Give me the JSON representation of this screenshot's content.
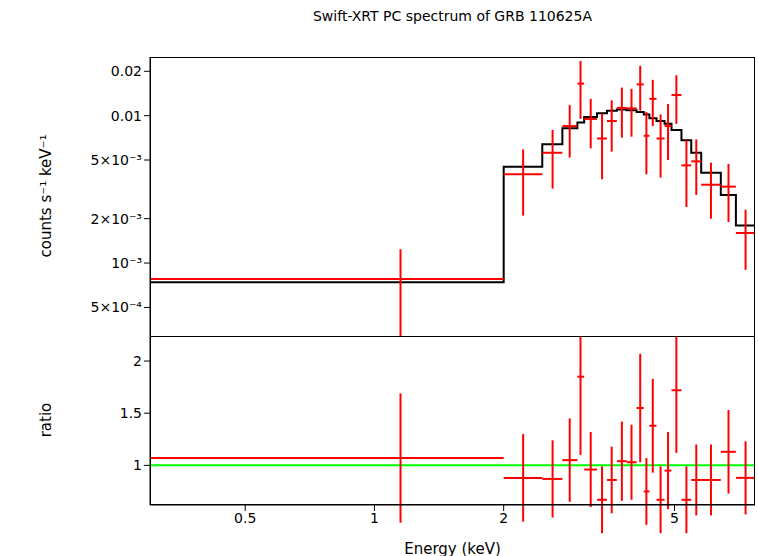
{
  "chart_data": [
    {
      "type": "scatter",
      "title": "Swift-XRT PC spectrum of GRB 110625A",
      "ylabel": "counts s⁻¹ keV⁻¹",
      "log": true,
      "tick_labels": "y",
      "xlim": [
        0.3,
        7.7
      ],
      "xticks": [
        0.5,
        1,
        2,
        5
      ],
      "ylim": [
        0.00032,
        0.025
      ],
      "yticks": [
        {
          "value": 0.0005,
          "label": "5×10⁻⁴"
        },
        {
          "value": 0.001,
          "label": "10⁻³"
        },
        {
          "value": 0.002,
          "label": "2×10⁻³"
        },
        {
          "value": 0.005,
          "label": "5×10⁻³"
        },
        0.01,
        0.02
      ],
      "series": [
        {
          "type": "scatter",
          "color": "#ff0000",
          "x": [
            1.15,
            2.22,
            2.6,
            2.85,
            3.02,
            3.19,
            3.39,
            3.57,
            3.77,
            3.97,
            4.16,
            4.3,
            4.45,
            4.64,
            4.83,
            5.05,
            5.33,
            5.62,
            6.08,
            6.68,
            7.32
          ],
          "x_low": [
            0.3,
            2.0,
            2.46,
            2.74,
            2.97,
            3.08,
            3.3,
            3.48,
            3.67,
            3.87,
            4.08,
            4.24,
            4.37,
            4.54,
            4.74,
            4.92,
            5.19,
            5.47,
            5.77,
            6.41,
            6.95
          ],
          "x_high": [
            2.0,
            2.46,
            2.74,
            2.97,
            3.08,
            3.3,
            3.48,
            3.67,
            3.87,
            4.08,
            4.24,
            4.37,
            4.54,
            4.74,
            4.92,
            5.19,
            5.47,
            5.77,
            6.41,
            6.95,
            7.7
          ],
          "values": [
            0.00078,
            0.004,
            0.0056,
            0.0085,
            0.0165,
            0.0095,
            0.007,
            0.0092,
            0.0113,
            0.0112,
            0.0163,
            0.0073,
            0.013,
            0.007,
            0.0085,
            0.0138,
            0.0046,
            0.0049,
            0.0034,
            0.0033,
            0.0016
          ],
          "yerr": [
            0.00046,
            0.0019,
            0.0024,
            0.0033,
            0.007,
            0.0035,
            0.0033,
            0.0035,
            0.0042,
            0.004,
            0.0055,
            0.0033,
            0.0045,
            0.0032,
            0.0035,
            0.005,
            0.0022,
            0.002,
            0.0014,
            0.0014,
            0.0007
          ]
        },
        {
          "type": "step",
          "color": "#000000",
          "x_low": [
            0.3,
            2.0,
            2.46,
            2.74,
            2.97,
            3.08,
            3.3,
            3.48,
            3.67,
            3.87,
            4.08,
            4.24,
            4.37,
            4.54,
            4.74,
            4.92,
            5.19,
            5.47,
            5.77,
            6.41,
            6.95
          ],
          "x_high": [
            2.0,
            2.46,
            2.74,
            2.97,
            3.08,
            3.3,
            3.48,
            3.67,
            3.87,
            4.08,
            4.24,
            4.37,
            4.54,
            4.74,
            4.92,
            5.19,
            5.47,
            5.77,
            6.41,
            6.95,
            7.7
          ],
          "values": [
            0.00074,
            0.0045,
            0.0064,
            0.0082,
            0.009,
            0.0098,
            0.0104,
            0.0108,
            0.011,
            0.0109,
            0.0106,
            0.0102,
            0.0096,
            0.0092,
            0.0088,
            0.008,
            0.0068,
            0.0056,
            0.0041,
            0.0029,
            0.0018
          ]
        }
      ]
    },
    {
      "type": "scatter",
      "xlabel": "Energy (keV)",
      "ylabel": "ratio",
      "log": "x",
      "xlim": [
        0.3,
        7.7
      ],
      "xticks": [
        0.5,
        1,
        2,
        5
      ],
      "ylim": [
        0.62,
        2.24
      ],
      "yticks": [
        1,
        1.5,
        2
      ],
      "reference_y": 1,
      "reference_color": "#00ff00",
      "series": [
        {
          "type": "scatter",
          "color": "#ff0000",
          "x": [
            1.15,
            2.22,
            2.6,
            2.85,
            3.02,
            3.19,
            3.39,
            3.57,
            3.77,
            3.97,
            4.16,
            4.3,
            4.45,
            4.64,
            4.83,
            5.05,
            5.33,
            5.62,
            6.08,
            6.68,
            7.32
          ],
          "x_low": [
            0.3,
            2.0,
            2.46,
            2.74,
            2.97,
            3.08,
            3.3,
            3.48,
            3.67,
            3.87,
            4.08,
            4.24,
            4.37,
            4.54,
            4.74,
            4.92,
            5.19,
            5.47,
            5.77,
            6.41,
            6.95
          ],
          "x_high": [
            2.0,
            2.46,
            2.74,
            2.97,
            3.08,
            3.3,
            3.48,
            3.67,
            3.87,
            4.08,
            4.24,
            4.37,
            4.54,
            4.74,
            4.92,
            5.19,
            5.47,
            5.77,
            6.41,
            6.95,
            7.7
          ],
          "values": [
            1.07,
            0.88,
            0.87,
            1.05,
            1.85,
            0.96,
            0.67,
            0.86,
            1.04,
            1.03,
            1.55,
            0.75,
            1.38,
            0.67,
            0.95,
            1.72,
            0.67,
            0.86,
            0.86,
            1.13,
            0.88
          ],
          "yerr": [
            0.62,
            0.42,
            0.37,
            0.4,
            0.75,
            0.36,
            0.32,
            0.32,
            0.38,
            0.36,
            0.52,
            0.32,
            0.45,
            0.32,
            0.37,
            0.6,
            0.32,
            0.34,
            0.34,
            0.4,
            0.35
          ]
        }
      ]
    }
  ]
}
